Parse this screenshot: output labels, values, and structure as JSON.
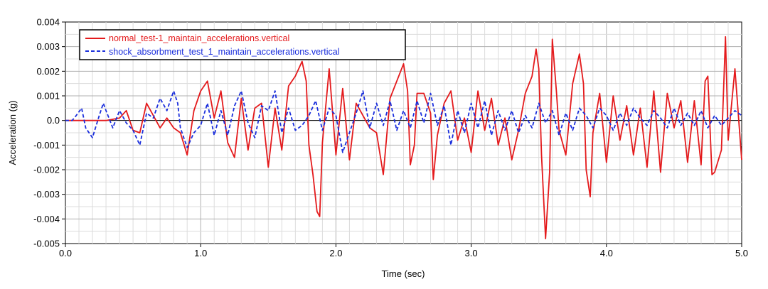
{
  "chart_data": {
    "type": "line",
    "title": "",
    "xlabel": "Time (sec)",
    "ylabel": "Acceleration (g)",
    "xlim": [
      0.0,
      5.0
    ],
    "ylim": [
      -0.005,
      0.004
    ],
    "x_ticks": [
      "0.0",
      "1.0",
      "2.0",
      "3.0",
      "4.0",
      "5.0"
    ],
    "y_ticks": [
      "0.004",
      "0.003",
      "0.002",
      "0.001",
      "0.0",
      "-0.001",
      "-0.002",
      "-0.003",
      "-0.004",
      "-0.005"
    ],
    "grid": true,
    "legend_position": "top-left",
    "series": [
      {
        "name": "normal_test-1_maintain_accelerations.vertical",
        "color": "#e41a1c",
        "style": "solid",
        "x": [
          0.0,
          0.3,
          0.4,
          0.45,
          0.5,
          0.55,
          0.6,
          0.65,
          0.7,
          0.75,
          0.8,
          0.85,
          0.9,
          0.95,
          1.0,
          1.05,
          1.1,
          1.15,
          1.2,
          1.25,
          1.3,
          1.35,
          1.4,
          1.45,
          1.5,
          1.55,
          1.6,
          1.65,
          1.7,
          1.75,
          1.78,
          1.8,
          1.83,
          1.86,
          1.88,
          1.9,
          1.95,
          2.0,
          2.05,
          2.1,
          2.15,
          2.2,
          2.25,
          2.3,
          2.35,
          2.4,
          2.45,
          2.5,
          2.53,
          2.55,
          2.58,
          2.6,
          2.65,
          2.7,
          2.72,
          2.75,
          2.8,
          2.85,
          2.9,
          2.95,
          3.0,
          3.05,
          3.1,
          3.15,
          3.2,
          3.25,
          3.3,
          3.35,
          3.4,
          3.45,
          3.48,
          3.5,
          3.52,
          3.55,
          3.58,
          3.6,
          3.63,
          3.65,
          3.7,
          3.75,
          3.8,
          3.83,
          3.85,
          3.88,
          3.9,
          3.95,
          4.0,
          4.05,
          4.1,
          4.15,
          4.2,
          4.25,
          4.3,
          4.35,
          4.4,
          4.45,
          4.5,
          4.55,
          4.6,
          4.65,
          4.7,
          4.73,
          4.75,
          4.78,
          4.8,
          4.85,
          4.88,
          4.9,
          4.95,
          5.0
        ],
        "y": [
          0.0,
          0.0,
          0.0001,
          0.0004,
          -0.0004,
          -0.0005,
          0.0007,
          0.0002,
          -0.0003,
          0.0001,
          -0.0003,
          -0.0005,
          -0.0014,
          0.0004,
          0.0012,
          0.0016,
          0.0001,
          0.0012,
          -0.0009,
          -0.0015,
          0.0009,
          -0.0012,
          0.0005,
          0.0007,
          -0.0019,
          0.0005,
          -0.0012,
          0.0014,
          0.0018,
          0.0024,
          0.0016,
          -0.001,
          -0.0022,
          -0.0037,
          -0.0039,
          -0.0009,
          0.0021,
          -0.0014,
          0.0013,
          -0.0016,
          0.0007,
          0.0002,
          -0.0003,
          -0.0005,
          -0.0022,
          0.0009,
          0.0016,
          0.0023,
          0.0012,
          -0.0018,
          -0.001,
          0.0011,
          0.0011,
          0.0003,
          -0.0024,
          -0.0006,
          0.0007,
          0.0012,
          -0.0008,
          0.0001,
          -0.0013,
          0.0012,
          -0.0004,
          0.0009,
          -0.001,
          0.0001,
          -0.0016,
          -0.0004,
          0.0011,
          0.0018,
          0.0029,
          0.0021,
          -0.0014,
          -0.0048,
          -0.0021,
          0.0033,
          0.0012,
          -0.0004,
          -0.0014,
          0.0015,
          0.0027,
          0.0015,
          -0.002,
          -0.0031,
          -0.0005,
          0.0011,
          -0.0017,
          0.001,
          -0.0008,
          0.0006,
          -0.0014,
          0.0005,
          -0.0019,
          0.0012,
          -0.0021,
          0.0011,
          -0.0003,
          0.0008,
          -0.0017,
          0.0008,
          -0.0018,
          0.0016,
          0.0018,
          -0.0022,
          -0.0021,
          -0.0012,
          0.0034,
          -0.0008,
          0.0021,
          -0.0016
        ]
      },
      {
        "name": "shock_absorbment_test_1_maintain_accelerations.vertical",
        "color": "#1a2edc",
        "style": "dashed",
        "x": [
          0.0,
          0.05,
          0.08,
          0.12,
          0.15,
          0.2,
          0.25,
          0.28,
          0.3,
          0.35,
          0.4,
          0.45,
          0.5,
          0.55,
          0.6,
          0.65,
          0.7,
          0.75,
          0.8,
          0.83,
          0.85,
          0.9,
          0.95,
          1.0,
          1.05,
          1.1,
          1.15,
          1.2,
          1.25,
          1.3,
          1.35,
          1.4,
          1.45,
          1.5,
          1.55,
          1.6,
          1.65,
          1.7,
          1.75,
          1.8,
          1.85,
          1.9,
          1.95,
          2.0,
          2.05,
          2.1,
          2.15,
          2.2,
          2.25,
          2.3,
          2.35,
          2.4,
          2.45,
          2.5,
          2.55,
          2.6,
          2.65,
          2.7,
          2.75,
          2.8,
          2.85,
          2.9,
          2.95,
          3.0,
          3.05,
          3.1,
          3.15,
          3.2,
          3.25,
          3.3,
          3.35,
          3.4,
          3.45,
          3.5,
          3.55,
          3.6,
          3.65,
          3.7,
          3.75,
          3.8,
          3.85,
          3.9,
          3.95,
          4.0,
          4.05,
          4.1,
          4.15,
          4.2,
          4.25,
          4.3,
          4.35,
          4.4,
          4.45,
          4.5,
          4.55,
          4.6,
          4.65,
          4.7,
          4.75,
          4.8,
          4.85,
          4.9,
          4.95,
          5.0
        ],
        "y": [
          0.0,
          0.0,
          0.0002,
          0.0005,
          -0.0003,
          -0.0007,
          0.0002,
          0.0007,
          0.0004,
          -0.0003,
          0.0004,
          -0.0001,
          -0.0004,
          -0.001,
          0.0003,
          0.0001,
          0.0009,
          0.0004,
          0.0012,
          0.0007,
          -0.0003,
          -0.0011,
          -0.0005,
          -0.0002,
          0.0007,
          -0.0006,
          0.0004,
          -0.0006,
          0.0006,
          0.0012,
          -0.0001,
          -0.0007,
          0.0006,
          0.0004,
          0.0012,
          -0.0005,
          0.0005,
          -0.0004,
          -0.0002,
          0.0002,
          0.0008,
          -0.0004,
          0.0005,
          0.0002,
          -0.0013,
          -0.0005,
          0.0003,
          0.0012,
          -0.0003,
          0.0007,
          -0.0002,
          0.0008,
          -0.0004,
          0.0004,
          -0.0003,
          0.0008,
          -0.0001,
          0.0011,
          -0.0002,
          0.0006,
          -0.001,
          0.0004,
          -0.0005,
          0.0007,
          -0.0003,
          0.0008,
          -0.0006,
          0.0004,
          -0.0004,
          0.0004,
          -0.0005,
          0.0002,
          -0.0003,
          0.0007,
          -0.0001,
          0.0004,
          -0.0006,
          0.0003,
          -0.0004,
          0.0005,
          0.0002,
          -0.0003,
          0.0005,
          0.0002,
          -0.0004,
          0.0003,
          -0.0002,
          0.0005,
          0.0001,
          -0.0002,
          0.0004,
          0.0001,
          -0.0003,
          0.0005,
          -0.0002,
          0.0003,
          -0.0002,
          0.0004,
          -0.0003,
          0.0002,
          -0.0002,
          0.0001,
          0.0004,
          0.0002
        ]
      }
    ]
  }
}
